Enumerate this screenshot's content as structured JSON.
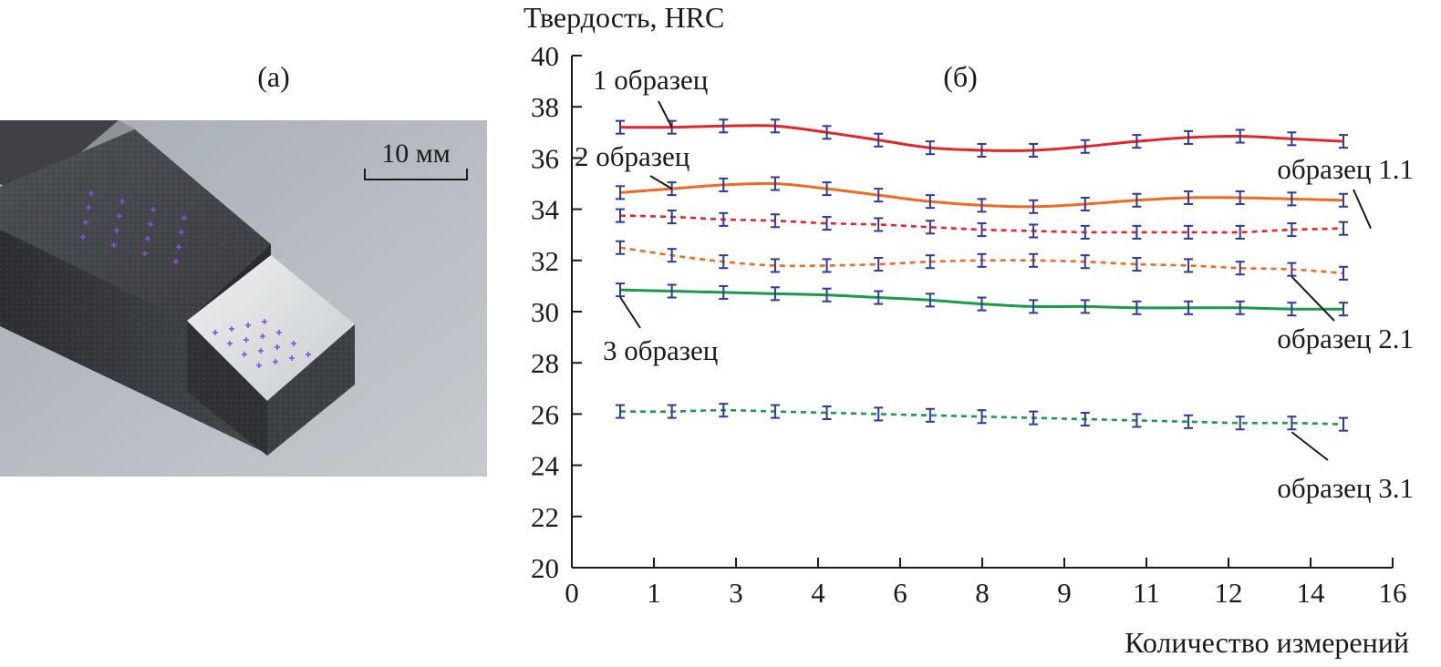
{
  "panel_a": {
    "label": "(a)",
    "scale_bar_label": "10 мм"
  },
  "chart_data": {
    "type": "line",
    "panel_label": "(б)",
    "title": "",
    "xlabel": "Количество измерений",
    "ylabel": "Твердость, HRC",
    "xlim": [
      0,
      16
    ],
    "ylim": [
      20,
      40
    ],
    "x_ticks": [
      "0",
      "1",
      "3",
      "4",
      "6",
      "8",
      "9",
      "11",
      "12",
      "14",
      "16"
    ],
    "y_ticks": [
      "20",
      "22",
      "24",
      "26",
      "28",
      "30",
      "32",
      "34",
      "36",
      "38",
      "40"
    ],
    "x": [
      1,
      2,
      3,
      4,
      5,
      6,
      7,
      8,
      9,
      10,
      11,
      12,
      13,
      14,
      15
    ],
    "error": 0.25,
    "series": [
      {
        "name": "1 образец",
        "style": "solid",
        "color": "#e3262a",
        "values": [
          37.2,
          37.2,
          37.25,
          37.25,
          37.0,
          36.7,
          36.4,
          36.3,
          36.3,
          36.45,
          36.65,
          36.8,
          36.85,
          36.75,
          36.65
        ]
      },
      {
        "name": "2 образец",
        "style": "solid",
        "color": "#ef6a25",
        "values": [
          34.65,
          34.8,
          34.95,
          35.0,
          34.8,
          34.55,
          34.3,
          34.15,
          34.1,
          34.2,
          34.35,
          34.45,
          34.45,
          34.4,
          34.35
        ]
      },
      {
        "name": "образец 1.1",
        "style": "dashed",
        "color": "#e3262a",
        "values": [
          33.75,
          33.7,
          33.6,
          33.55,
          33.45,
          33.4,
          33.3,
          33.2,
          33.15,
          33.1,
          33.1,
          33.1,
          33.1,
          33.2,
          33.25
        ]
      },
      {
        "name": "образец 2.1",
        "style": "dashed",
        "color": "#ef6a25",
        "values": [
          32.5,
          32.2,
          31.95,
          31.8,
          31.8,
          31.85,
          31.95,
          32.0,
          32.0,
          31.95,
          31.85,
          31.8,
          31.7,
          31.65,
          31.5
        ]
      },
      {
        "name": "3 образец",
        "style": "solid",
        "color": "#1a9a4a",
        "values": [
          30.85,
          30.8,
          30.75,
          30.7,
          30.65,
          30.55,
          30.45,
          30.3,
          30.2,
          30.2,
          30.15,
          30.15,
          30.15,
          30.1,
          30.1
        ]
      },
      {
        "name": "образец 3.1",
        "style": "dashed",
        "color": "#1a9a4a",
        "values": [
          26.1,
          26.1,
          26.15,
          26.1,
          26.05,
          26.0,
          25.95,
          25.9,
          25.85,
          25.8,
          25.75,
          25.7,
          25.65,
          25.65,
          25.6
        ]
      }
    ],
    "errorbar_color": "#2d3a9a",
    "grid": false,
    "legend": "none"
  }
}
